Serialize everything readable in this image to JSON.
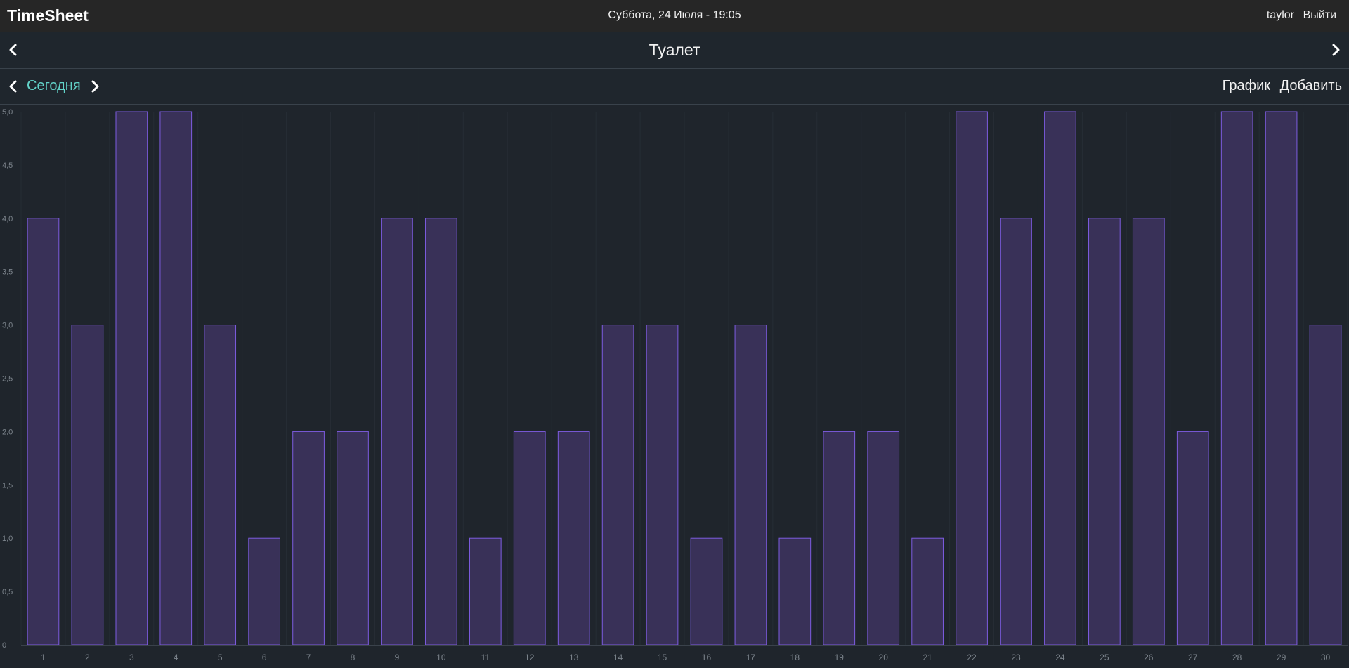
{
  "app": {
    "brand": "TimeSheet",
    "datetime": "Суббота, 24 Июля - 19:05",
    "user": "taylor",
    "logout": "Выйти"
  },
  "header": {
    "title": "Туалет",
    "prev_icon": "chevron-left-icon",
    "next_icon": "chevron-right-icon"
  },
  "nav": {
    "today_label": "Сегодня",
    "graph_label": "График",
    "add_label": "Добавить"
  },
  "colors": {
    "bar_fill": "#393158",
    "bar_stroke": "#7d5ce0",
    "accent": "#62d3c9",
    "background": "#1f252c"
  },
  "chart_data": {
    "type": "bar",
    "categories": [
      "1",
      "2",
      "3",
      "4",
      "5",
      "6",
      "7",
      "8",
      "9",
      "10",
      "11",
      "12",
      "13",
      "14",
      "15",
      "16",
      "17",
      "18",
      "19",
      "20",
      "21",
      "22",
      "23",
      "24",
      "25",
      "26",
      "27",
      "28",
      "29",
      "30"
    ],
    "values": [
      4,
      3,
      5,
      5,
      3,
      1,
      2,
      2,
      4,
      4,
      1,
      2,
      2,
      3,
      3,
      1,
      3,
      1,
      2,
      2,
      1,
      5,
      4,
      5,
      4,
      4,
      2,
      5,
      5,
      3
    ],
    "ylim": [
      0,
      5
    ],
    "yticks": [
      "0",
      "0,5",
      "1,0",
      "1,5",
      "2,0",
      "2,5",
      "3,0",
      "3,5",
      "4,0",
      "4,5",
      "5,0"
    ],
    "title": "",
    "xlabel": "",
    "ylabel": "",
    "grid": "vertical"
  }
}
